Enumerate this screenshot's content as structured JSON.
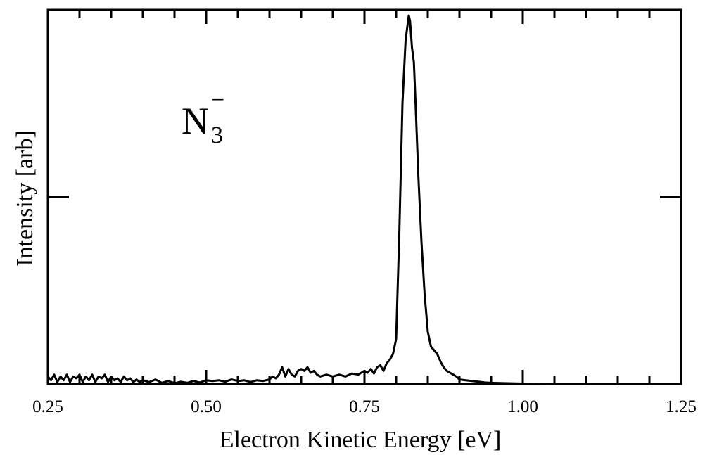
{
  "chart_data": {
    "type": "line",
    "title": "",
    "xlabel": "Electron Kinetic Energy [eV]",
    "ylabel": "Intensity [arb]",
    "xlim": [
      0.25,
      1.25
    ],
    "ylim": [
      0,
      1
    ],
    "x_ticks": [
      "0.25",
      "0.50",
      "0.75",
      "1.00",
      "1.25"
    ],
    "x_tick_values": [
      0.25,
      0.5,
      0.75,
      1.0,
      1.25
    ],
    "y_ticks_labeled": false,
    "grid": false,
    "legend": "none",
    "annotation": {
      "species": "N",
      "subscript": "3",
      "charge": "−"
    },
    "line_color": "#000000",
    "series": [
      {
        "x": [
          0.25,
          0.255,
          0.26,
          0.265,
          0.27,
          0.275,
          0.28,
          0.285,
          0.29,
          0.295,
          0.3,
          0.305,
          0.31,
          0.315,
          0.32,
          0.325,
          0.33,
          0.335,
          0.34,
          0.345,
          0.35,
          0.355,
          0.36,
          0.365,
          0.37,
          0.375,
          0.38,
          0.385,
          0.39,
          0.395,
          0.4,
          0.41,
          0.42,
          0.43,
          0.44,
          0.45,
          0.46,
          0.47,
          0.48,
          0.49,
          0.5,
          0.51,
          0.52,
          0.53,
          0.54,
          0.55,
          0.56,
          0.57,
          0.58,
          0.59,
          0.6,
          0.605,
          0.61,
          0.615,
          0.62,
          0.625,
          0.63,
          0.635,
          0.64,
          0.645,
          0.65,
          0.655,
          0.66,
          0.665,
          0.67,
          0.675,
          0.68,
          0.69,
          0.7,
          0.71,
          0.72,
          0.73,
          0.74,
          0.75,
          0.755,
          0.76,
          0.765,
          0.77,
          0.775,
          0.78,
          0.785,
          0.79,
          0.795,
          0.8,
          0.805,
          0.81,
          0.815,
          0.82,
          0.822,
          0.825,
          0.828,
          0.83,
          0.835,
          0.84,
          0.845,
          0.85,
          0.855,
          0.86,
          0.865,
          0.87,
          0.875,
          0.88,
          0.885,
          0.89,
          0.895,
          0.9,
          0.91,
          0.92,
          0.93,
          0.94,
          0.95,
          0.97,
          1.0,
          1.05,
          1.1,
          1.15,
          1.2,
          1.25
        ],
        "y": [
          0.02,
          0.01,
          0.025,
          0.005,
          0.02,
          0.01,
          0.025,
          0.005,
          0.02,
          0.015,
          0.025,
          0.005,
          0.02,
          0.01,
          0.025,
          0.005,
          0.02,
          0.015,
          0.025,
          0.005,
          0.02,
          0.01,
          0.015,
          0.005,
          0.02,
          0.01,
          0.015,
          0.005,
          0.012,
          0.005,
          0.01,
          0.005,
          0.012,
          0.003,
          0.008,
          0.002,
          0.006,
          0.003,
          0.008,
          0.004,
          0.01,
          0.008,
          0.01,
          0.006,
          0.012,
          0.008,
          0.01,
          0.005,
          0.01,
          0.008,
          0.012,
          0.02,
          0.015,
          0.025,
          0.045,
          0.02,
          0.04,
          0.025,
          0.02,
          0.035,
          0.04,
          0.035,
          0.045,
          0.03,
          0.035,
          0.025,
          0.02,
          0.025,
          0.02,
          0.025,
          0.02,
          0.028,
          0.025,
          0.035,
          0.03,
          0.04,
          0.028,
          0.045,
          0.05,
          0.035,
          0.055,
          0.065,
          0.08,
          0.12,
          0.4,
          0.75,
          0.92,
          0.985,
          0.97,
          0.9,
          0.86,
          0.78,
          0.56,
          0.38,
          0.24,
          0.14,
          0.1,
          0.09,
          0.08,
          0.06,
          0.045,
          0.035,
          0.03,
          0.025,
          0.02,
          0.012,
          0.01,
          0.008,
          0.006,
          0.004,
          0.003,
          0.002,
          0.001,
          0.0,
          0.0,
          0.0,
          0.0,
          0.0
        ]
      }
    ]
  }
}
